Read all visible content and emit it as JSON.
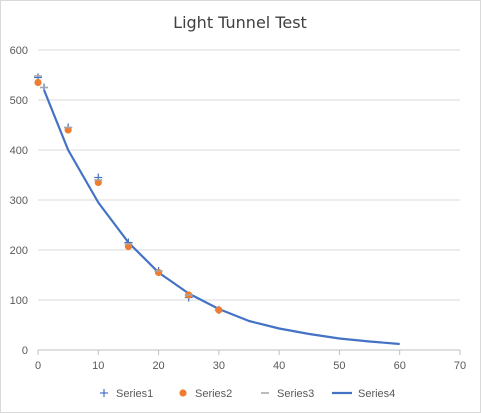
{
  "chart_data": {
    "type": "scatter",
    "title": "Light Tunnel Test",
    "xlabel": "",
    "ylabel": "",
    "xlim": [
      0,
      70
    ],
    "ylim": [
      0,
      600
    ],
    "x_ticks": [
      0,
      10,
      20,
      30,
      40,
      50,
      60,
      70
    ],
    "y_ticks": [
      0,
      100,
      200,
      300,
      400,
      500,
      600
    ],
    "grid": "horizontal",
    "legend_position": "bottom",
    "series": [
      {
        "name": "Series1",
        "marker": "plus",
        "color": "#4472c4",
        "x": [
          0,
          1,
          5,
          10,
          15,
          20,
          25,
          30
        ],
        "y": [
          545,
          525,
          445,
          345,
          215,
          158,
          105,
          80
        ]
      },
      {
        "name": "Series2",
        "marker": "circle",
        "color": "#ed7d31",
        "x": [
          0,
          5,
          10,
          15,
          20,
          25,
          30
        ],
        "y": [
          535,
          440,
          335,
          207,
          155,
          110,
          80
        ]
      },
      {
        "name": "Series3",
        "marker": "dash",
        "color": "#a5a5a5",
        "x": [
          0,
          1,
          5,
          10,
          15,
          20,
          25
        ],
        "y": [
          548,
          525,
          445,
          340,
          212,
          158,
          110
        ]
      },
      {
        "name": "Series4",
        "marker": "line",
        "color": "#4472c4",
        "x": [
          1,
          5,
          10,
          15,
          20,
          25,
          30,
          35,
          40,
          45,
          50,
          55,
          60
        ],
        "y": [
          520,
          400,
          295,
          215,
          155,
          113,
          82,
          58,
          43,
          32,
          23,
          17,
          12
        ]
      }
    ]
  }
}
